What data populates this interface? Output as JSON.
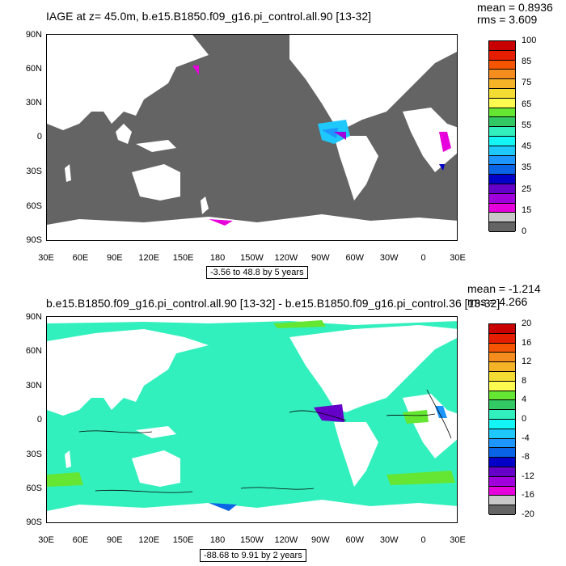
{
  "panel1": {
    "title": "IAGE at z=  45.0m, b.e15.B1850.f09_g16.pi_control.all.90 [13-32]",
    "mean": "mean = 0.8936",
    "rms": "rms = 3.609",
    "range": "-3.56 to 48.8 by 5 years",
    "colorbar": {
      "colors": [
        "#c80000",
        "#e61e00",
        "#f55500",
        "#f58c1e",
        "#f5b428",
        "#f5dc32",
        "#fffa50",
        "#64e632",
        "#32c864",
        "#32f0be",
        "#14f5f5",
        "#1ec8fa",
        "#1e96ff",
        "#0a64e6",
        "#0000c8",
        "#6400c8",
        "#a000dc",
        "#e600dc",
        "#c8c8c8",
        "#646464"
      ],
      "labels": [
        "100",
        "",
        "85",
        "",
        "75",
        "",
        "65",
        "",
        "55",
        "",
        "45",
        "",
        "35",
        "",
        "25",
        "",
        "15",
        "",
        "0"
      ]
    }
  },
  "panel2": {
    "title": "b.e15.B1850.f09_g16.pi_control.all.90 [13-32] - b.e15.B1850.f09_g16.pi_control.36 [13-32]",
    "mean": "mean = -1.214",
    "rms": "rms = 4.266",
    "range": "-88.68 to 9.91 by 2 years",
    "colorbar": {
      "colors": [
        "#c80000",
        "#e61e00",
        "#f55500",
        "#f58c1e",
        "#f5b428",
        "#f5dc32",
        "#fffa50",
        "#64e632",
        "#32c864",
        "#32f0be",
        "#14f5f5",
        "#1ec8fa",
        "#1e96ff",
        "#0a64e6",
        "#0000c8",
        "#6400c8",
        "#a000dc",
        "#e600dc",
        "#c8c8c8",
        "#646464"
      ],
      "labels": [
        "20",
        "16",
        "12",
        "8",
        "4",
        "0",
        "-4",
        "-8",
        "-12",
        "-16",
        "-20"
      ]
    }
  },
  "axes": {
    "lat_labels": [
      "90N",
      "60N",
      "30N",
      "0",
      "30S",
      "60S",
      "90S"
    ],
    "lon_labels": [
      "30E",
      "60E",
      "90E",
      "120E",
      "150E",
      "180",
      "150W",
      "120W",
      "90W",
      "60W",
      "30W",
      "0",
      "30E"
    ]
  },
  "colors": {
    "land": "#ffffff",
    "ocean1": "#646464",
    "ocean2": "#32f0be",
    "frame": "#000000"
  }
}
